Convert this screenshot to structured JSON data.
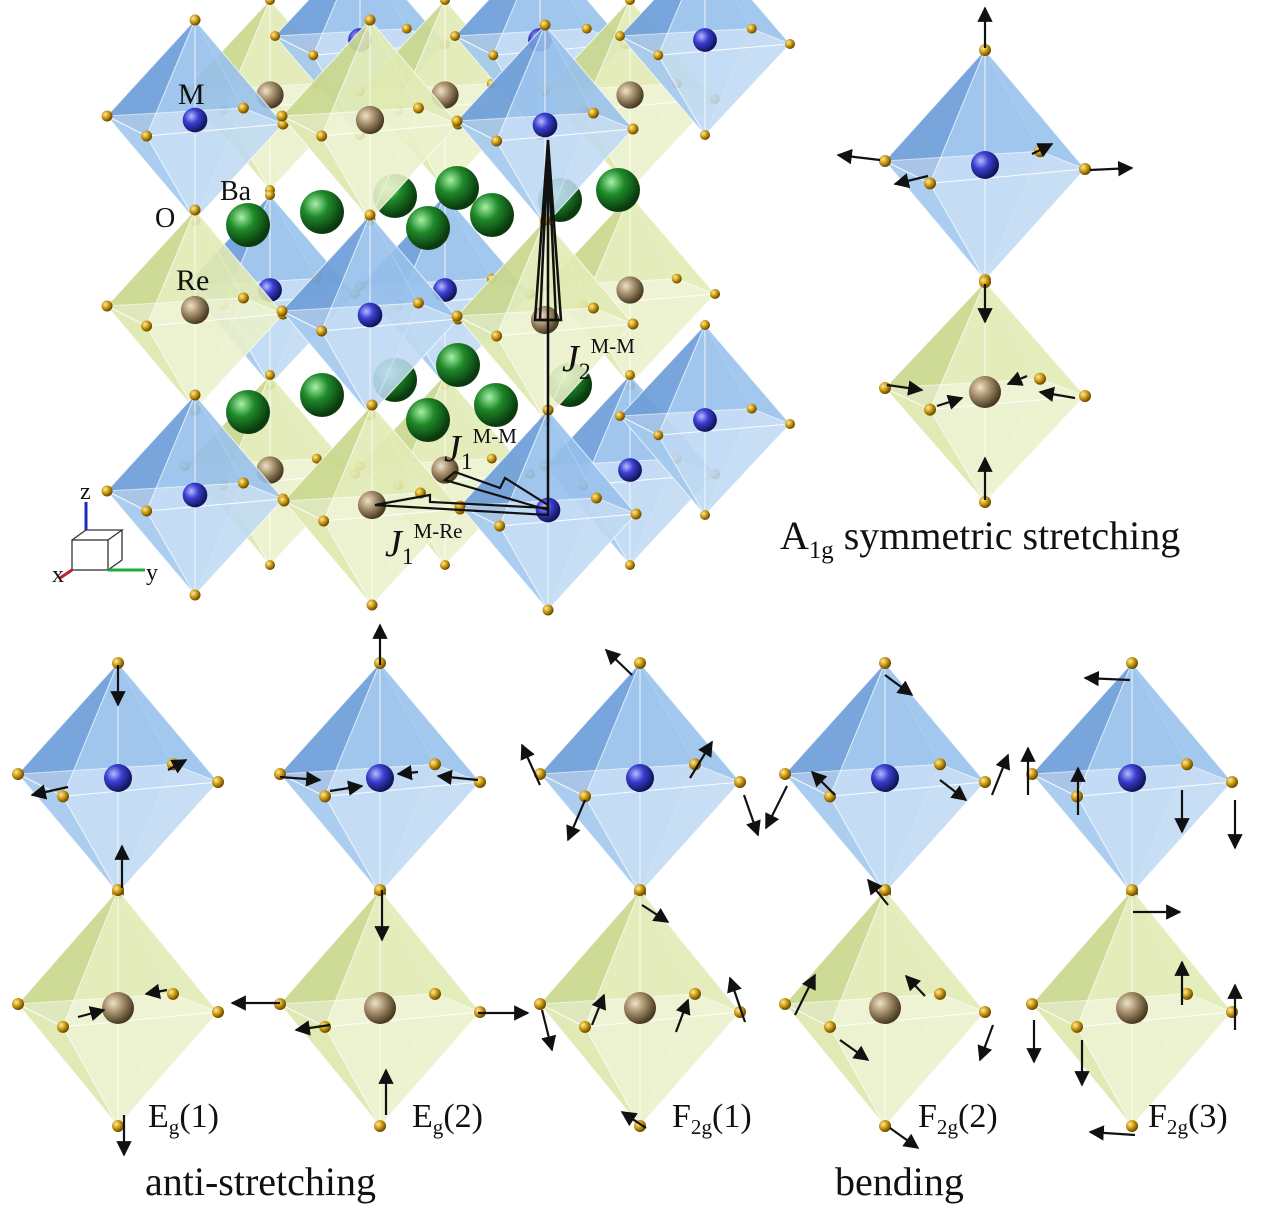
{
  "colors": {
    "blue_octahedron": "#6f9fd8",
    "yellow_octahedron": "#c9d88e",
    "M_atom": "#3a3fd0",
    "Re_atom": "#a08a66",
    "Ba_atom": "#1f8a2a",
    "O_atom": "#c8960c",
    "arrow": "#111111",
    "axis_x": "#c0202a",
    "axis_y": "#1faa3a",
    "axis_z": "#1a2fb5"
  },
  "structure": {
    "label_M": "M",
    "label_Ba": "Ba",
    "label_O": "O",
    "label_Re": "Re",
    "J2_symbol": "J",
    "J2_sub": "2",
    "J2_sup": "M-M",
    "J1mm_symbol": "J",
    "J1mm_sub": "1",
    "J1mm_sup": "M-M",
    "J1mre_symbol": "J",
    "J1mre_sub": "1",
    "J1mre_sup": "M-Re",
    "axis_x": "x",
    "axis_y": "y",
    "axis_z": "z"
  },
  "modes": {
    "a1g_main": "A",
    "a1g_sub": "1g",
    "a1g_text": "symmetric stretching",
    "eg1_main": "E",
    "eg1_sub": "g",
    "eg1_idx": "(1)",
    "eg2_main": "E",
    "eg2_sub": "g",
    "eg2_idx": "(2)",
    "f2g1_main": "F",
    "f2g1_sub": "2g",
    "f2g1_idx": "(1)",
    "f2g2_main": "F",
    "f2g2_sub": "2g",
    "f2g2_idx": "(2)",
    "f2g3_main": "F",
    "f2g3_sub": "2g",
    "f2g3_idx": "(3)",
    "group_anti": "anti-stretching",
    "group_bending": "bending"
  }
}
